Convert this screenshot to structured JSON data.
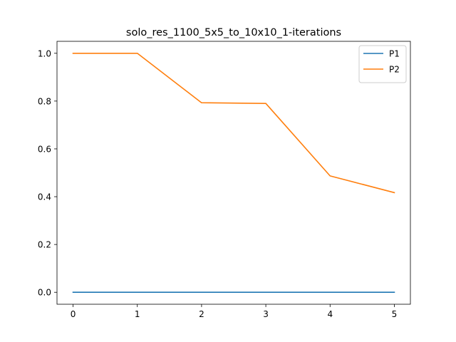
{
  "chart_data": {
    "type": "line",
    "title": "solo_res_1100_5x5_to_10x10_1-iterations",
    "xlabel": "",
    "ylabel": "",
    "x": [
      0,
      1,
      2,
      3,
      4,
      5
    ],
    "series": [
      {
        "name": "P1",
        "color": "#1f77b4",
        "values": [
          0,
          0,
          0,
          0,
          0,
          0
        ]
      },
      {
        "name": "P2",
        "color": "#ff7f0e",
        "values": [
          1.0,
          1.0,
          0.793,
          0.79,
          0.487,
          0.417
        ]
      }
    ],
    "xlim": [
      -0.25,
      5.25
    ],
    "ylim": [
      -0.05,
      1.05
    ],
    "xticks": [
      0,
      1,
      2,
      3,
      4,
      5
    ],
    "xtick_labels": [
      "0",
      "1",
      "2",
      "3",
      "4",
      "5"
    ],
    "yticks": [
      0.0,
      0.2,
      0.4,
      0.6,
      0.8,
      1.0
    ],
    "ytick_labels": [
      "0.0",
      "0.2",
      "0.4",
      "0.6",
      "0.8",
      "1.0"
    ],
    "grid": false,
    "legend_position": "top-right"
  }
}
